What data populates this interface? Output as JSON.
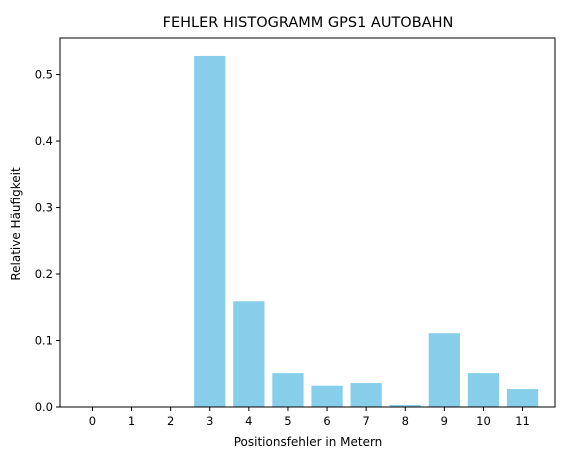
{
  "chart_data": {
    "type": "bar",
    "title": "FEHLER HISTOGRAMM GPS1 AUTOBAHN",
    "xlabel": "Positionsfehler in Metern",
    "ylabel": "Relative Häufigkeit",
    "categories": [
      "0",
      "1",
      "2",
      "3",
      "4",
      "5",
      "6",
      "7",
      "8",
      "9",
      "10",
      "11"
    ],
    "values": [
      0.0,
      0.0,
      0.0,
      0.528,
      0.159,
      0.051,
      0.032,
      0.036,
      0.003,
      0.111,
      0.051,
      0.027
    ],
    "yticks": [
      "0.0",
      "0.1",
      "0.2",
      "0.3",
      "0.4",
      "0.5"
    ],
    "ylim": [
      0,
      0.555
    ],
    "bar_color": "#87CEEB",
    "grid": false,
    "legend": "none"
  }
}
